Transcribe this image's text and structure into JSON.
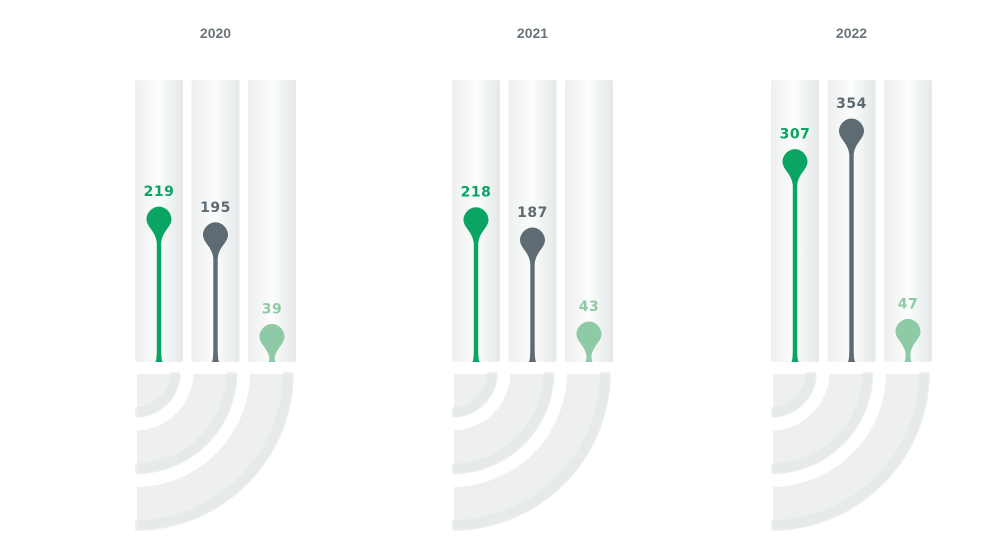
{
  "chart_data": {
    "type": "bar",
    "title": "",
    "categories": [
      "2020",
      "2021",
      "2022"
    ],
    "series": [
      {
        "color": "#0aa463",
        "values": [
          219,
          218,
          307
        ]
      },
      {
        "color": "#5e6b72",
        "values": [
          195,
          187,
          354
        ]
      },
      {
        "color": "#8fcaa6",
        "values": [
          39,
          43,
          47
        ]
      }
    ],
    "ylim": [
      0,
      400
    ],
    "grid": false,
    "legend": "none"
  }
}
